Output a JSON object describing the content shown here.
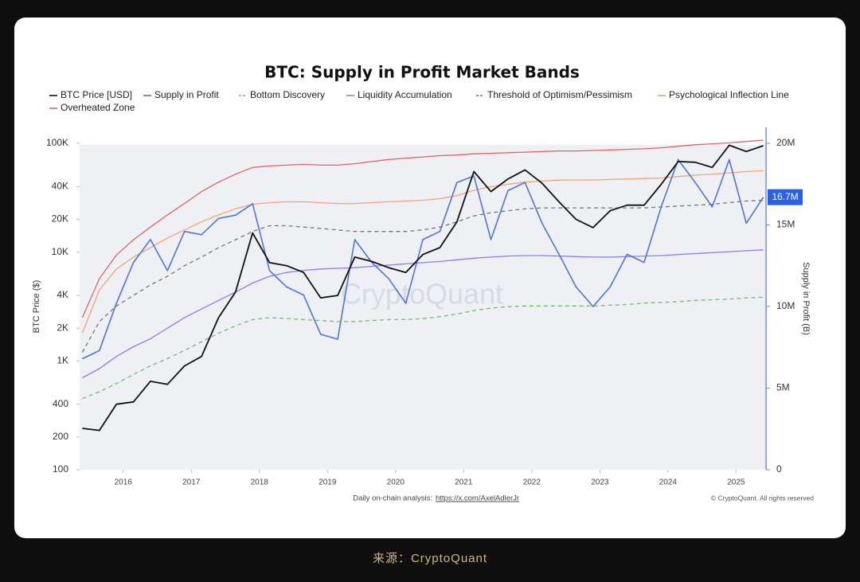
{
  "caption": "来源：CryptoQuant",
  "chart_data": {
    "type": "line",
    "title": "BTC: Supply in Profit Market Bands",
    "ylabel": "BTC Price ($)",
    "y2label": "Supply in Profit (B)",
    "watermark": "CryptoQuant",
    "footer_note": "Daily on-chain analysis:",
    "footer_link": "https://x.com/AxelAdlerJr",
    "copyright": "© CryptoQuant. All rights reserved",
    "log_y": true,
    "x": [
      2015.4,
      2015.65,
      2015.9,
      2016.15,
      2016.4,
      2016.65,
      2016.9,
      2017.15,
      2017.4,
      2017.65,
      2017.9,
      2018.15,
      2018.4,
      2018.65,
      2018.9,
      2019.15,
      2019.4,
      2019.65,
      2019.9,
      2020.15,
      2020.4,
      2020.65,
      2020.9,
      2021.15,
      2021.4,
      2021.65,
      2021.9,
      2022.15,
      2022.4,
      2022.65,
      2022.9,
      2023.15,
      2023.4,
      2023.65,
      2023.9,
      2024.15,
      2024.4,
      2024.65,
      2024.9,
      2025.15,
      2025.4
    ],
    "xlim": [
      2015.36,
      2025.44
    ],
    "xticks": [
      2016,
      2017,
      2018,
      2019,
      2020,
      2021,
      2022,
      2023,
      2024,
      2025
    ],
    "ylim": [
      100,
      100000
    ],
    "yticks": [
      100,
      200,
      400,
      {
        "value": 1000,
        "label": "1K"
      },
      {
        "value": 2000,
        "label": "2K"
      },
      {
        "value": 4000,
        "label": "4K"
      },
      {
        "value": 10000,
        "label": "10K"
      },
      {
        "value": 20000,
        "label": "20K"
      },
      {
        "value": 40000,
        "label": "40K"
      },
      {
        "value": 100000,
        "label": "100K"
      }
    ],
    "y2lim": [
      0,
      20000000
    ],
    "y2ticks": [
      0,
      {
        "value": 5000000,
        "label": "5M"
      },
      {
        "value": 10000000,
        "label": "10M"
      },
      {
        "value": 15000000,
        "label": "15M"
      },
      {
        "value": 20000000,
        "label": "20M"
      }
    ],
    "series": [
      {
        "name": "BTC Price [USD]",
        "color": "#111111",
        "values": [
          240,
          230,
          400,
          420,
          650,
          610,
          900,
          1100,
          2500,
          4300,
          15000,
          8000,
          7500,
          6500,
          3800,
          4000,
          9000,
          8200,
          7200,
          6500,
          9500,
          11000,
          19000,
          55000,
          36000,
          47000,
          57000,
          43000,
          29000,
          20000,
          16800,
          24000,
          27000,
          27000,
          42000,
          68000,
          67000,
          60000,
          96000,
          84000,
          95000
        ]
      },
      {
        "name": "Supply in Profit",
        "color": "#4f74dc",
        "axis": "y2",
        "values": [
          6800000,
          7300000,
          10200000,
          12700000,
          14100000,
          12200000,
          14600000,
          14400000,
          15400000,
          15600000,
          16300000,
          12200000,
          11200000,
          10700000,
          8300000,
          8000000,
          14100000,
          12700000,
          11700000,
          10200000,
          14100000,
          14600000,
          17600000,
          18000000,
          14100000,
          17100000,
          17600000,
          15100000,
          13200000,
          11200000,
          10000000,
          11200000,
          13200000,
          12700000,
          16100000,
          19000000,
          17600000,
          16100000,
          19000000,
          15100000,
          16700000
        ],
        "value_labels": [
          null,
          null,
          null,
          null,
          null,
          null,
          null,
          null,
          null,
          null,
          null,
          null,
          null,
          null,
          null,
          null,
          null,
          null,
          null,
          null,
          null,
          null,
          null,
          null,
          null,
          null,
          null,
          null,
          null,
          null,
          null,
          null,
          null,
          null,
          null,
          null,
          null,
          null,
          null,
          null,
          "16.7M"
        ]
      },
      {
        "name": "Bottom Discovery",
        "color": "#6cbf6c",
        "dashed": true,
        "values": [
          450,
          520,
          620,
          750,
          900,
          1050,
          1250,
          1500,
          1800,
          2100,
          2400,
          2500,
          2450,
          2400,
          2350,
          2300,
          2300,
          2350,
          2400,
          2400,
          2450,
          2550,
          2700,
          2900,
          3050,
          3150,
          3200,
          3200,
          3200,
          3200,
          3200,
          3250,
          3300,
          3400,
          3450,
          3500,
          3600,
          3650,
          3700,
          3800,
          3850
        ]
      },
      {
        "name": "Liquidity Accumulation",
        "color": "#8a7ff0",
        "values": [
          700,
          850,
          1100,
          1350,
          1600,
          2000,
          2500,
          3000,
          3600,
          4300,
          5200,
          6000,
          6500,
          6800,
          7000,
          7100,
          7200,
          7400,
          7600,
          7800,
          8000,
          8200,
          8500,
          8800,
          9000,
          9200,
          9300,
          9300,
          9200,
          9100,
          9000,
          9000,
          9100,
          9200,
          9300,
          9500,
          9700,
          9900,
          10100,
          10300,
          10500
        ]
      },
      {
        "name": "Threshold of Optimism/Pessimism",
        "color": "#777777",
        "dashed": true,
        "values": [
          1200,
          2300,
          3200,
          4000,
          5000,
          6000,
          7500,
          9000,
          11000,
          13000,
          15500,
          17500,
          17500,
          17000,
          16500,
          16000,
          15500,
          15500,
          15500,
          15500,
          16000,
          17000,
          19000,
          21500,
          23000,
          24000,
          25000,
          25500,
          25500,
          25500,
          25500,
          25500,
          25500,
          25500,
          26000,
          26500,
          27000,
          27500,
          28500,
          29500,
          30000
        ]
      },
      {
        "name": "Psychological Inflection Line",
        "color": "#f2a474",
        "values": [
          1800,
          4500,
          7000,
          9000,
          11000,
          13500,
          16000,
          19000,
          22000,
          25000,
          27500,
          28500,
          29000,
          29000,
          28500,
          28000,
          28000,
          28500,
          29000,
          29500,
          30000,
          31000,
          33000,
          37000,
          40000,
          42000,
          44000,
          45000,
          46000,
          46000,
          46000,
          46500,
          47000,
          47500,
          48000,
          49500,
          51000,
          52000,
          53500,
          55000,
          56000
        ]
      },
      {
        "name": "Overheated Zone",
        "color": "#e06464",
        "values": [
          2500,
          5700,
          9400,
          13000,
          17000,
          22000,
          28000,
          36000,
          44000,
          52000,
          60000,
          62000,
          63000,
          64000,
          63000,
          63000,
          65000,
          68000,
          71000,
          73000,
          75000,
          77000,
          78000,
          80000,
          81000,
          82000,
          83000,
          84000,
          85000,
          85000,
          86000,
          87000,
          88000,
          89000,
          91000,
          94000,
          97000,
          99000,
          101000,
          104000,
          107000
        ]
      }
    ]
  }
}
